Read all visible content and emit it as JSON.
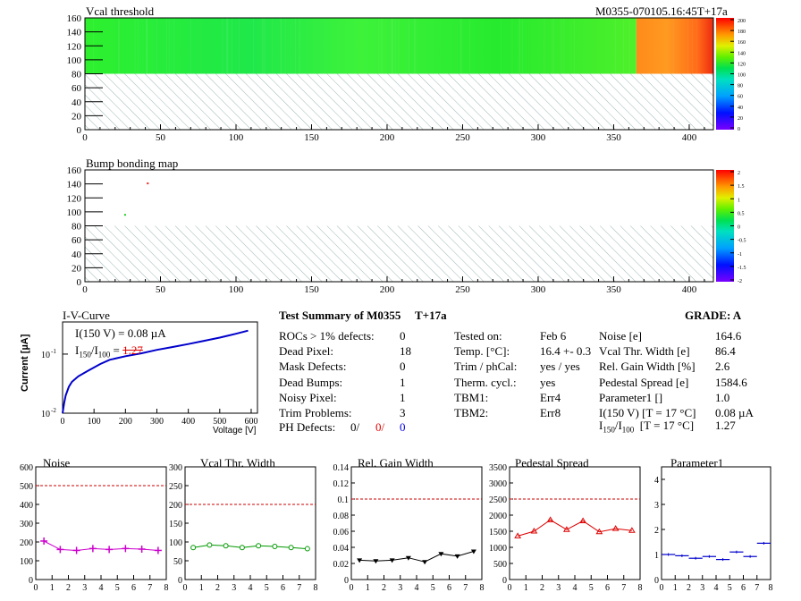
{
  "header": {
    "vcal_title": "Vcal threshold",
    "module_title": "M0355-070105.16:45T+17a",
    "bump_title": "Bump bonding map"
  },
  "maps": {
    "x_ticks": [
      "0",
      "50",
      "100",
      "150",
      "200",
      "250",
      "300",
      "350",
      "400"
    ],
    "y_ticks": [
      "0",
      "20",
      "40",
      "60",
      "80",
      "100",
      "120",
      "140",
      "160"
    ],
    "x_range": [
      0,
      416
    ],
    "y_range": [
      0,
      160
    ],
    "vcal_scale_ticks": [
      "0",
      "20",
      "40",
      "60",
      "80",
      "100",
      "120",
      "140",
      "160",
      "180",
      "200"
    ],
    "bump_scale_ticks": [
      "-2",
      "-1.5",
      "-1",
      "-0.5",
      "0",
      "0.5",
      "1",
      "1.5",
      "2"
    ]
  },
  "iv": {
    "title": "I-V-Curve",
    "ylabel": "Current [µA]",
    "xlabel": "Voltage [V]",
    "annotation1": "I(150 V) = 0.08 µA",
    "annotation2_main": "I",
    "annotation2_sub1": "150",
    "annotation2_mid": "/I",
    "annotation2_sub2": "100",
    "annotation2_eq": " =",
    "annotation2_val": "1.27",
    "x_ticks": [
      "0",
      "100",
      "200",
      "300",
      "400",
      "500",
      "600"
    ],
    "y_tick_top": "10",
    "y_tick_top_exp": "-1",
    "y_tick_bot": "10",
    "y_tick_bot_exp": "-2"
  },
  "summary": {
    "title": "Test Summary of M0355",
    "temp_tag": "T+17a",
    "grade": "GRADE:  A",
    "left": [
      {
        "label": "ROCs > 1% defects:",
        "value": "0"
      },
      {
        "label": "Dead Pixel:",
        "value": "18"
      },
      {
        "label": "Mask Defects:",
        "value": "0"
      },
      {
        "label": "Dead Bumps:",
        "value": "1"
      },
      {
        "label": "Noisy Pixel:",
        "value": "1"
      },
      {
        "label": "Trim Problems:",
        "value": "3"
      }
    ],
    "ph_label": "PH Defects:",
    "ph_values": [
      "0/",
      "0/",
      "0"
    ],
    "ph_colors": [
      "#000000",
      "#e00000",
      "#0000e0"
    ],
    "middle": [
      {
        "label": "Tested on:",
        "value": "Feb 6"
      },
      {
        "label": "Temp. [°C]:",
        "value": "16.4 +- 0.3"
      },
      {
        "label": "Trim / phCal:",
        "value": "yes / yes"
      },
      {
        "label": "Therm. cycl.:",
        "value": "yes"
      },
      {
        "label": "TBM1:",
        "value": "Err4"
      },
      {
        "label": "TBM2:",
        "value": "Err8"
      }
    ],
    "right": [
      {
        "label": "Noise [e]",
        "value": "164.6"
      },
      {
        "label": "Vcal Thr. Width [e]",
        "value": "86.4"
      },
      {
        "label": "Rel. Gain Width [%]",
        "value": "2.6"
      },
      {
        "label": "Pedestal Spread [e]",
        "value": "1584.6"
      },
      {
        "label": "Parameter1 []",
        "value": "1.0"
      },
      {
        "label": "I(150 V) [T = 17 °C]",
        "value": "0.08 µA"
      }
    ],
    "last_label_main": "I",
    "last_label_sub1": "150",
    "last_label_mid": "/I",
    "last_label_sub2": "100",
    "last_label_rest": "  [T = 17 °C]",
    "last_value": "1.27"
  },
  "chart_data": [
    {
      "type": "heatmap",
      "title": "Vcal threshold",
      "xlim": [
        0,
        416
      ],
      "ylim": [
        0,
        160
      ],
      "color_scale": [
        0,
        200
      ],
      "filled_rows": [
        80,
        160
      ],
      "bands": [
        {
          "x": [
            0,
            365
          ],
          "approx_value": 100,
          "color": "green"
        },
        {
          "x": [
            365,
            416
          ],
          "approx_value": 170,
          "color": "orange-red"
        }
      ]
    },
    {
      "type": "heatmap",
      "title": "Bump bonding map",
      "xlim": [
        0,
        416
      ],
      "ylim": [
        0,
        160
      ],
      "color_scale": [
        -2,
        2
      ],
      "points": [
        {
          "x": 41,
          "y": 142,
          "color": "red"
        },
        {
          "x": 26,
          "y": 97,
          "color": "green"
        }
      ]
    },
    {
      "type": "line",
      "title": "I-V-Curve",
      "xlabel": "Voltage [V]",
      "ylabel": "Current [µA]",
      "xlim": [
        0,
        620
      ],
      "ylim": [
        0.01,
        0.35
      ],
      "log_y": true,
      "x": [
        0,
        5,
        10,
        20,
        30,
        50,
        80,
        120,
        150,
        200,
        250,
        300,
        350,
        400,
        450,
        500,
        550,
        590
      ],
      "y": [
        0.01,
        0.015,
        0.02,
        0.028,
        0.034,
        0.042,
        0.052,
        0.068,
        0.08,
        0.092,
        0.103,
        0.118,
        0.132,
        0.148,
        0.168,
        0.19,
        0.22,
        0.25
      ]
    },
    {
      "type": "line",
      "title": "Noise",
      "x": [
        0.5,
        1.5,
        2.5,
        3.5,
        4.5,
        5.5,
        6.5,
        7.5
      ],
      "y": [
        205,
        160,
        155,
        165,
        160,
        165,
        162,
        155
      ],
      "xlim": [
        0,
        8
      ],
      "ylim": [
        0,
        600
      ],
      "yticks": [
        "0",
        "100",
        "200",
        "300",
        "400",
        "500",
        "600"
      ],
      "xticks": [
        "0",
        "1",
        "2",
        "3",
        "4",
        "5",
        "6",
        "7",
        "8"
      ],
      "reference": 500,
      "color": "#cc00cc",
      "marker": "cross"
    },
    {
      "type": "line",
      "title": "Vcal Thr. Width",
      "x": [
        0.5,
        1.5,
        2.5,
        3.5,
        4.5,
        5.5,
        6.5,
        7.5
      ],
      "y": [
        85,
        92,
        90,
        85,
        90,
        88,
        85,
        82
      ],
      "xlim": [
        0,
        8
      ],
      "ylim": [
        0,
        300
      ],
      "yticks": [
        "0",
        "50",
        "100",
        "150",
        "200",
        "250",
        "300"
      ],
      "xticks": [
        "0",
        "1",
        "2",
        "3",
        "4",
        "5",
        "6",
        "7",
        "8"
      ],
      "reference": 200,
      "color": "#009900",
      "marker": "circle"
    },
    {
      "type": "line",
      "title": "Rel. Gain Width",
      "x": [
        0.5,
        1.5,
        2.5,
        3.5,
        4.5,
        5.5,
        6.5,
        7.5
      ],
      "y": [
        0.024,
        0.023,
        0.024,
        0.027,
        0.022,
        0.032,
        0.029,
        0.035
      ],
      "xlim": [
        0,
        8
      ],
      "ylim": [
        0,
        0.14
      ],
      "yticks": [
        "0",
        "0.02",
        "0.04",
        "0.06",
        "0.08",
        "0.1",
        "0.12",
        "0.14"
      ],
      "xticks": [
        "0",
        "1",
        "2",
        "3",
        "4",
        "5",
        "6",
        "7",
        "8"
      ],
      "reference": 0.1,
      "color": "#000000",
      "marker": "triangle-down"
    },
    {
      "type": "line",
      "title": "Pedestal Spread",
      "x": [
        0.5,
        1.5,
        2.5,
        3.5,
        4.5,
        5.5,
        6.5,
        7.5
      ],
      "y": [
        1350,
        1500,
        1850,
        1550,
        1820,
        1480,
        1580,
        1520
      ],
      "xlim": [
        0,
        8
      ],
      "ylim": [
        0,
        3500
      ],
      "yticks": [
        "0",
        "500",
        "1000",
        "1500",
        "2000",
        "2500",
        "3000",
        "3500"
      ],
      "xticks": [
        "0",
        "1",
        "2",
        "3",
        "4",
        "5",
        "6",
        "7",
        "8"
      ],
      "reference": 2500,
      "color": "#dd0000",
      "marker": "triangle-up"
    },
    {
      "type": "line",
      "title": "Parameter1",
      "x": [
        0.5,
        1.5,
        2.5,
        3.5,
        4.5,
        5.5,
        6.5,
        7.5
      ],
      "y": [
        1.0,
        0.95,
        0.85,
        0.92,
        0.8,
        1.1,
        0.92,
        1.45
      ],
      "xlim": [
        0,
        8
      ],
      "ylim": [
        0,
        4.5
      ],
      "yticks": [
        "0",
        "1",
        "2",
        "3",
        "4"
      ],
      "xticks": [
        "0",
        "1",
        "2",
        "3",
        "4",
        "5",
        "6",
        "7",
        "8"
      ],
      "reference": null,
      "color": "#0000cc",
      "marker": "hline"
    }
  ]
}
